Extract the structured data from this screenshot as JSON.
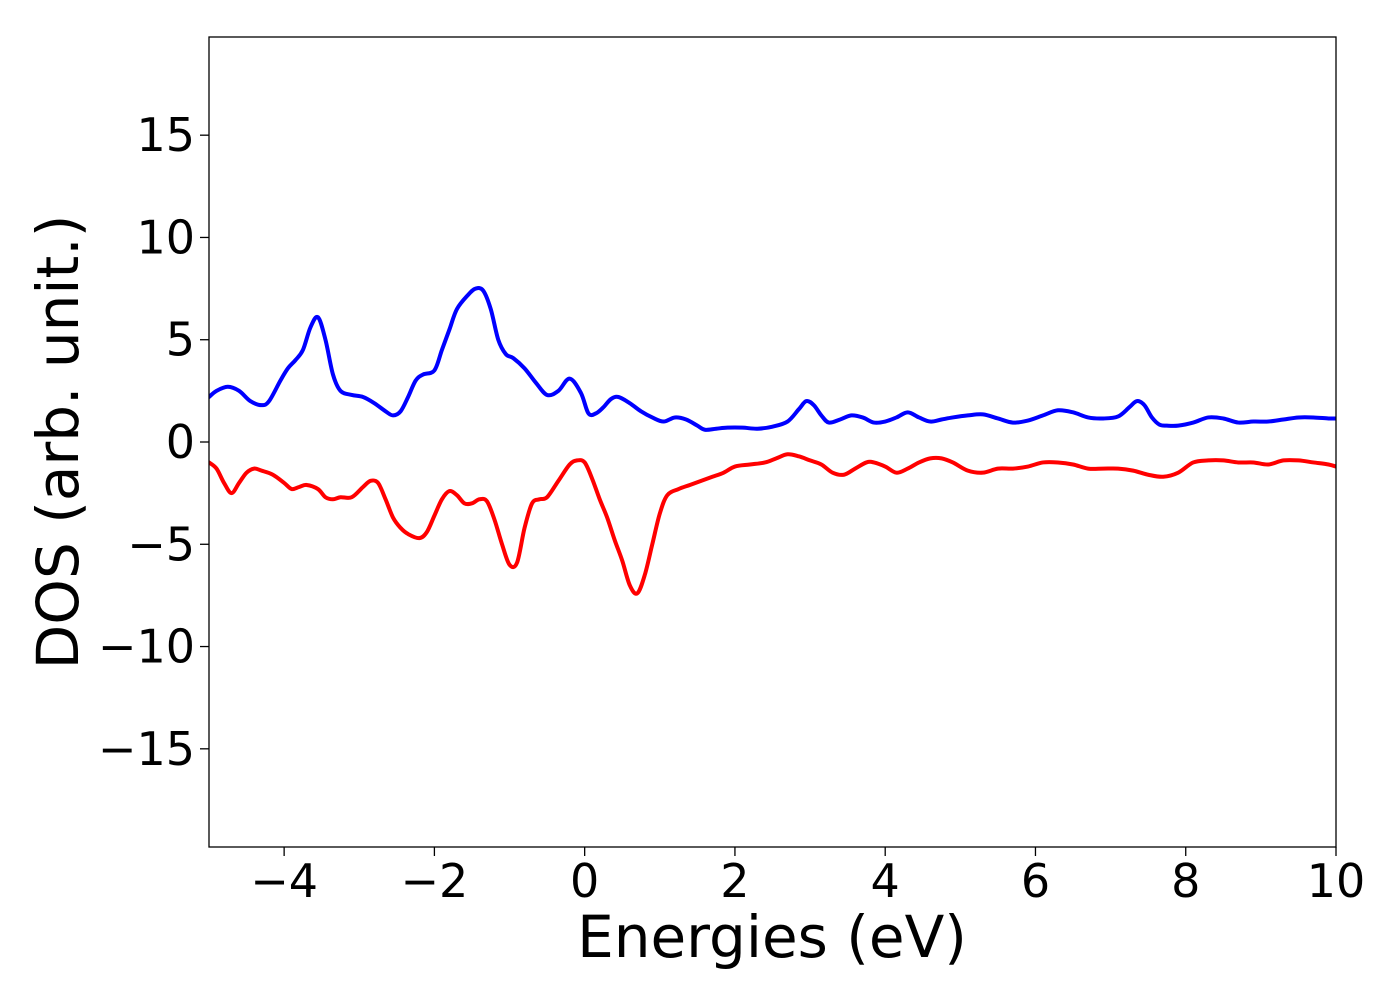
{
  "chart_data": {
    "type": "line",
    "title": "",
    "xlabel": "Energies (eV)",
    "ylabel": "DOS (arb. unit.)",
    "xlim": [
      -5,
      10
    ],
    "ylim": [
      -19.8,
      19.8
    ],
    "xticks": [
      -4,
      -2,
      0,
      2,
      4,
      6,
      8,
      10
    ],
    "yticks": [
      -15,
      -10,
      -5,
      0,
      5,
      10,
      15
    ],
    "xtick_labels": [
      "−4",
      "−2",
      "0",
      "2",
      "4",
      "6",
      "8",
      "10"
    ],
    "ytick_labels": [
      "−15",
      "−10",
      "−5",
      "0",
      "5",
      "10",
      "15"
    ],
    "grid": false,
    "legend": "none",
    "series": [
      {
        "color": "#0000ff",
        "x": [
          -5.0,
          -4.9,
          -4.75,
          -4.6,
          -4.45,
          -4.3,
          -4.2,
          -4.05,
          -3.95,
          -3.85,
          -3.75,
          -3.65,
          -3.55,
          -3.45,
          -3.35,
          -3.25,
          -3.1,
          -2.95,
          -2.8,
          -2.65,
          -2.55,
          -2.45,
          -2.35,
          -2.25,
          -2.15,
          -2.0,
          -1.9,
          -1.8,
          -1.7,
          -1.55,
          -1.45,
          -1.35,
          -1.25,
          -1.15,
          -1.05,
          -0.95,
          -0.8,
          -0.65,
          -0.5,
          -0.35,
          -0.2,
          -0.05,
          0.05,
          0.15,
          0.25,
          0.35,
          0.45,
          0.6,
          0.75,
          0.9,
          1.05,
          1.2,
          1.35,
          1.5,
          1.6,
          1.75,
          1.9,
          2.1,
          2.3,
          2.5,
          2.7,
          2.85,
          2.95,
          3.05,
          3.15,
          3.25,
          3.4,
          3.55,
          3.7,
          3.85,
          4.0,
          4.15,
          4.3,
          4.45,
          4.6,
          4.75,
          4.9,
          5.1,
          5.3,
          5.5,
          5.7,
          5.9,
          6.1,
          6.3,
          6.5,
          6.7,
          6.9,
          7.1,
          7.25,
          7.35,
          7.45,
          7.55,
          7.65,
          7.75,
          7.9,
          8.1,
          8.3,
          8.5,
          8.7,
          8.9,
          9.1,
          9.3,
          9.5,
          9.7,
          9.9,
          10.0
        ],
        "y": [
          2.2,
          2.5,
          2.7,
          2.5,
          2.0,
          1.8,
          2.0,
          3.0,
          3.6,
          4.0,
          4.5,
          5.6,
          6.1,
          5.0,
          3.3,
          2.5,
          2.3,
          2.2,
          1.9,
          1.5,
          1.3,
          1.5,
          2.2,
          3.0,
          3.3,
          3.5,
          4.5,
          5.5,
          6.5,
          7.2,
          7.5,
          7.4,
          6.5,
          5.0,
          4.3,
          4.1,
          3.6,
          2.9,
          2.3,
          2.5,
          3.1,
          2.4,
          1.4,
          1.4,
          1.7,
          2.1,
          2.2,
          1.9,
          1.5,
          1.2,
          1.0,
          1.2,
          1.1,
          0.8,
          0.6,
          0.65,
          0.7,
          0.7,
          0.65,
          0.75,
          1.0,
          1.6,
          2.0,
          1.8,
          1.3,
          0.95,
          1.1,
          1.3,
          1.2,
          0.95,
          1.0,
          1.2,
          1.45,
          1.2,
          1.0,
          1.1,
          1.2,
          1.3,
          1.35,
          1.15,
          0.95,
          1.05,
          1.3,
          1.55,
          1.45,
          1.2,
          1.15,
          1.25,
          1.7,
          2.0,
          1.8,
          1.2,
          0.85,
          0.8,
          0.8,
          0.95,
          1.2,
          1.15,
          0.95,
          1.0,
          1.0,
          1.1,
          1.2,
          1.2,
          1.15,
          1.15
        ]
      },
      {
        "color": "#ff0000",
        "x": [
          -5.0,
          -4.9,
          -4.8,
          -4.7,
          -4.6,
          -4.5,
          -4.4,
          -4.3,
          -4.15,
          -4.0,
          -3.9,
          -3.8,
          -3.7,
          -3.55,
          -3.45,
          -3.35,
          -3.25,
          -3.1,
          -2.95,
          -2.85,
          -2.75,
          -2.65,
          -2.55,
          -2.45,
          -2.35,
          -2.2,
          -2.1,
          -2.0,
          -1.9,
          -1.8,
          -1.7,
          -1.6,
          -1.5,
          -1.4,
          -1.3,
          -1.2,
          -1.1,
          -1.0,
          -0.9,
          -0.8,
          -0.7,
          -0.6,
          -0.5,
          -0.35,
          -0.2,
          -0.1,
          0.0,
          0.1,
          0.2,
          0.3,
          0.4,
          0.5,
          0.6,
          0.7,
          0.8,
          0.9,
          1.0,
          1.1,
          1.25,
          1.4,
          1.55,
          1.7,
          1.85,
          2.0,
          2.2,
          2.4,
          2.55,
          2.7,
          2.85,
          3.0,
          3.15,
          3.3,
          3.45,
          3.6,
          3.75,
          3.85,
          4.0,
          4.15,
          4.3,
          4.45,
          4.6,
          4.75,
          4.9,
          5.1,
          5.3,
          5.5,
          5.7,
          5.9,
          6.1,
          6.3,
          6.5,
          6.7,
          6.9,
          7.1,
          7.3,
          7.5,
          7.7,
          7.9,
          8.1,
          8.3,
          8.5,
          8.7,
          8.9,
          9.1,
          9.3,
          9.5,
          9.7,
          9.9,
          10.0
        ],
        "y": [
          -1.0,
          -1.3,
          -2.0,
          -2.5,
          -2.0,
          -1.5,
          -1.3,
          -1.4,
          -1.6,
          -2.0,
          -2.3,
          -2.2,
          -2.1,
          -2.3,
          -2.7,
          -2.8,
          -2.7,
          -2.7,
          -2.2,
          -1.9,
          -2.0,
          -2.8,
          -3.7,
          -4.2,
          -4.5,
          -4.7,
          -4.4,
          -3.6,
          -2.8,
          -2.4,
          -2.6,
          -3.0,
          -3.0,
          -2.8,
          -2.9,
          -3.8,
          -5.0,
          -6.0,
          -5.9,
          -4.2,
          -3.0,
          -2.8,
          -2.7,
          -1.9,
          -1.1,
          -0.9,
          -1.0,
          -1.8,
          -2.8,
          -3.7,
          -4.8,
          -5.8,
          -7.0,
          -7.4,
          -6.5,
          -5.0,
          -3.5,
          -2.6,
          -2.3,
          -2.1,
          -1.9,
          -1.7,
          -1.5,
          -1.2,
          -1.1,
          -1.0,
          -0.8,
          -0.6,
          -0.7,
          -0.9,
          -1.1,
          -1.5,
          -1.6,
          -1.3,
          -1.0,
          -1.0,
          -1.2,
          -1.5,
          -1.3,
          -1.0,
          -0.8,
          -0.8,
          -1.0,
          -1.4,
          -1.5,
          -1.3,
          -1.3,
          -1.2,
          -1.0,
          -1.0,
          -1.1,
          -1.3,
          -1.3,
          -1.3,
          -1.4,
          -1.6,
          -1.7,
          -1.5,
          -1.0,
          -0.9,
          -0.9,
          -1.0,
          -1.0,
          -1.1,
          -0.9,
          -0.9,
          -1.0,
          -1.1,
          -1.2
        ]
      }
    ]
  }
}
